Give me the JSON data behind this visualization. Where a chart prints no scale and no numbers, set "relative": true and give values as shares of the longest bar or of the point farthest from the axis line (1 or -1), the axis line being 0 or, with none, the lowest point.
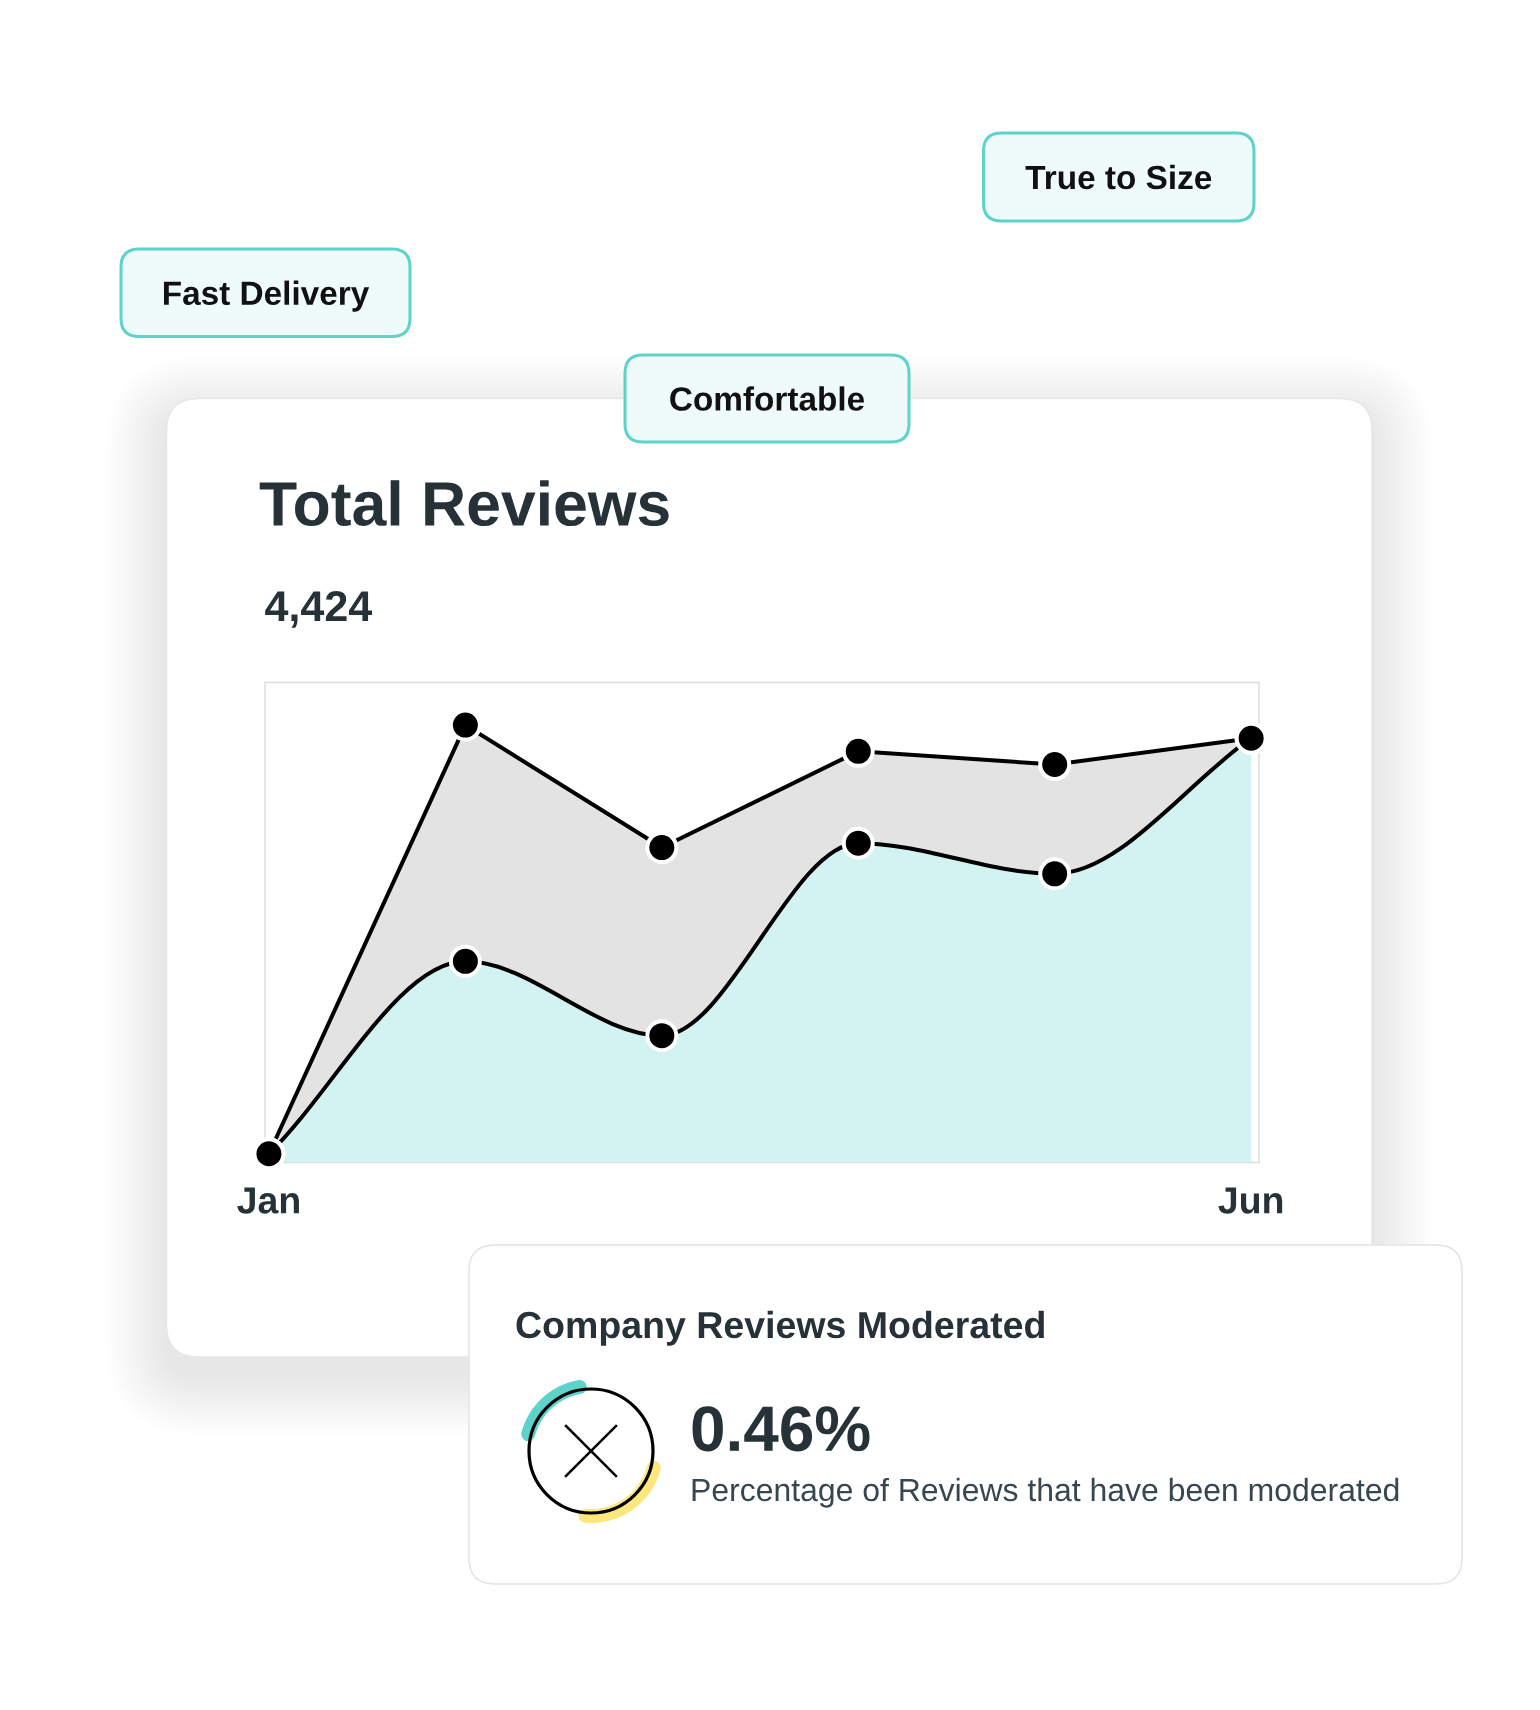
{
  "chart_data": [
    {
      "type": "area",
      "title": "Total Reviews",
      "subtitle": "4,424",
      "annotations": [
        "True to Size",
        "Fast Delivery",
        "Comfortable"
      ],
      "categories": [
        "Jan",
        null,
        null,
        null,
        null,
        "Jun"
      ],
      "relative": true,
      "marker": "circle",
      "series": [
        {
          "color": "#e3e3e3",
          "values": [
            0.02,
            1.0,
            0.72,
            0.94,
            0.91,
            0.97
          ]
        },
        {
          "color": "#d2f3f1",
          "values": [
            0.02,
            0.46,
            0.29,
            0.73,
            0.66,
            0.97
          ]
        }
      ]
    },
    {
      "type": "other",
      "title": "Company Reviews Moderated",
      "annotations": [
        "0.46%",
        "Percentage of Reviews that have been moderated"
      ]
    }
  ]
}
